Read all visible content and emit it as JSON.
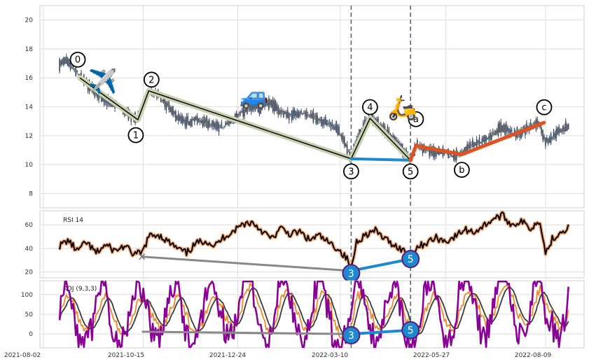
{
  "chart_data": [
    {
      "type": "candlestick",
      "panel": "price",
      "ylim": [
        7,
        21
      ],
      "yticks": [
        8,
        10,
        12,
        14,
        16,
        18,
        20
      ],
      "xlim": [
        "2021-08-02",
        "2022-09-04"
      ],
      "price_color": "#3b4658",
      "price_series": [
        {
          "x": "2021-08-14",
          "y": 16.9
        },
        {
          "x": "2021-08-18",
          "y": 17.2
        },
        {
          "x": "2021-08-22",
          "y": 16.8
        },
        {
          "x": "2021-08-26",
          "y": 16.5
        },
        {
          "x": "2021-08-30",
          "y": 16.0
        },
        {
          "x": "2021-09-05",
          "y": 15.4
        },
        {
          "x": "2021-09-12",
          "y": 14.8
        },
        {
          "x": "2021-09-19",
          "y": 14.3
        },
        {
          "x": "2021-09-26",
          "y": 14.1
        },
        {
          "x": "2021-10-03",
          "y": 13.5
        },
        {
          "x": "2021-10-10",
          "y": 13.1
        },
        {
          "x": "2021-10-15",
          "y": 14.0
        },
        {
          "x": "2021-10-19",
          "y": 15.0
        },
        {
          "x": "2021-10-25",
          "y": 14.9
        },
        {
          "x": "2021-11-01",
          "y": 14.2
        },
        {
          "x": "2021-11-08",
          "y": 13.4
        },
        {
          "x": "2021-11-15",
          "y": 12.9
        },
        {
          "x": "2021-11-22",
          "y": 13.1
        },
        {
          "x": "2021-11-29",
          "y": 13.0
        },
        {
          "x": "2021-12-06",
          "y": 12.7
        },
        {
          "x": "2021-12-13",
          "y": 12.6
        },
        {
          "x": "2021-12-20",
          "y": 13.1
        },
        {
          "x": "2021-12-27",
          "y": 13.6
        },
        {
          "x": "2022-01-03",
          "y": 13.9
        },
        {
          "x": "2022-01-10",
          "y": 13.9
        },
        {
          "x": "2022-01-17",
          "y": 14.3
        },
        {
          "x": "2022-01-24",
          "y": 13.7
        },
        {
          "x": "2022-01-31",
          "y": 13.4
        },
        {
          "x": "2022-02-07",
          "y": 13.6
        },
        {
          "x": "2022-02-14",
          "y": 13.4
        },
        {
          "x": "2022-02-21",
          "y": 13.2
        },
        {
          "x": "2022-02-28",
          "y": 12.9
        },
        {
          "x": "2022-03-07",
          "y": 12.6
        },
        {
          "x": "2022-03-14",
          "y": 11.3
        },
        {
          "x": "2022-03-18",
          "y": 10.5
        },
        {
          "x": "2022-03-22",
          "y": 11.6
        },
        {
          "x": "2022-03-27",
          "y": 12.7
        },
        {
          "x": "2022-04-01",
          "y": 13.3
        },
        {
          "x": "2022-04-07",
          "y": 12.9
        },
        {
          "x": "2022-04-14",
          "y": 12.2
        },
        {
          "x": "2022-04-21",
          "y": 11.6
        },
        {
          "x": "2022-04-28",
          "y": 10.7
        },
        {
          "x": "2022-05-01",
          "y": 10.3
        },
        {
          "x": "2022-05-05",
          "y": 11.3
        },
        {
          "x": "2022-05-12",
          "y": 11.1
        },
        {
          "x": "2022-05-19",
          "y": 10.8
        },
        {
          "x": "2022-05-26",
          "y": 10.9
        },
        {
          "x": "2022-06-02",
          "y": 10.6
        },
        {
          "x": "2022-06-09",
          "y": 10.8
        },
        {
          "x": "2022-06-16",
          "y": 11.4
        },
        {
          "x": "2022-06-23",
          "y": 11.6
        },
        {
          "x": "2022-06-30",
          "y": 12.0
        },
        {
          "x": "2022-07-07",
          "y": 12.6
        },
        {
          "x": "2022-07-14",
          "y": 12.3
        },
        {
          "x": "2022-07-21",
          "y": 12.1
        },
        {
          "x": "2022-07-28",
          "y": 12.6
        },
        {
          "x": "2022-08-04",
          "y": 12.9
        },
        {
          "x": "2022-08-09",
          "y": 11.6
        },
        {
          "x": "2022-08-14",
          "y": 11.9
        },
        {
          "x": "2022-08-20",
          "y": 12.4
        },
        {
          "x": "2022-08-26",
          "y": 12.7
        }
      ],
      "wave_label_color": "#000000",
      "impulse_color": "#c8d4b0",
      "impulse_core_color": "#111111",
      "impulse_wave": [
        {
          "label": "0",
          "x": "2021-08-29",
          "y": 16.0
        },
        {
          "label": "1",
          "x": "2021-10-11",
          "y": 13.1
        },
        {
          "label": "2",
          "x": "2021-10-19",
          "y": 15.1
        },
        {
          "label": "3",
          "x": "2022-03-18",
          "y": 10.4
        },
        {
          "label": "4",
          "x": "2022-04-01",
          "y": 13.2
        },
        {
          "label": "5",
          "x": "2022-05-01",
          "y": 10.3
        }
      ],
      "correction_color": "#e0521f",
      "correction_wave": [
        {
          "label": "a",
          "x": "2022-05-05",
          "y": 11.3
        },
        {
          "label": "b",
          "x": "2022-06-08",
          "y": 10.7
        },
        {
          "label": "c",
          "x": "2022-08-08",
          "y": 12.9
        }
      ],
      "divergence_color": "#1e88d0",
      "divergence_line": {
        "from": {
          "x": "2022-03-18",
          "y": 10.4
        },
        "to": {
          "x": "2022-05-01",
          "y": 10.3
        }
      },
      "vlines": [
        "2022-03-18",
        "2022-05-01"
      ],
      "vline_color": "#56677a",
      "markers": [
        {
          "icon": "airplane-icon",
          "glyph": "✈️",
          "x": "2021-09-15",
          "y": 15.2
        },
        {
          "icon": "car-icon",
          "glyph": "🚙",
          "x": "2022-01-05",
          "y": 14.2
        },
        {
          "icon": "scooter-icon",
          "glyph": "🛵",
          "x": "2022-04-25",
          "y": 13.4
        }
      ]
    },
    {
      "type": "line",
      "panel": "rsi",
      "title": "RSI 14",
      "ylim": [
        15,
        72
      ],
      "yticks": [
        20,
        40,
        60
      ],
      "series_color": "#000000",
      "series_glow": "#f3a877",
      "series": [
        {
          "x": "2021-08-14",
          "y": 42
        },
        {
          "x": "2021-08-20",
          "y": 47
        },
        {
          "x": "2021-08-27",
          "y": 38
        },
        {
          "x": "2021-09-03",
          "y": 45
        },
        {
          "x": "2021-09-10",
          "y": 36
        },
        {
          "x": "2021-09-17",
          "y": 43
        },
        {
          "x": "2021-09-24",
          "y": 38
        },
        {
          "x": "2021-10-01",
          "y": 42
        },
        {
          "x": "2021-10-08",
          "y": 35
        },
        {
          "x": "2021-10-14",
          "y": 36
        },
        {
          "x": "2021-10-19",
          "y": 50
        },
        {
          "x": "2021-10-26",
          "y": 52
        },
        {
          "x": "2021-11-02",
          "y": 46
        },
        {
          "x": "2021-11-09",
          "y": 40
        },
        {
          "x": "2021-11-16",
          "y": 36
        },
        {
          "x": "2021-11-23",
          "y": 44
        },
        {
          "x": "2021-11-30",
          "y": 47
        },
        {
          "x": "2021-12-07",
          "y": 42
        },
        {
          "x": "2021-12-14",
          "y": 50
        },
        {
          "x": "2021-12-21",
          "y": 55
        },
        {
          "x": "2021-12-28",
          "y": 61
        },
        {
          "x": "2022-01-04",
          "y": 62
        },
        {
          "x": "2022-01-11",
          "y": 55
        },
        {
          "x": "2022-01-18",
          "y": 48
        },
        {
          "x": "2022-01-25",
          "y": 57
        },
        {
          "x": "2022-02-01",
          "y": 52
        },
        {
          "x": "2022-02-08",
          "y": 54
        },
        {
          "x": "2022-02-15",
          "y": 47
        },
        {
          "x": "2022-02-22",
          "y": 51
        },
        {
          "x": "2022-03-01",
          "y": 45
        },
        {
          "x": "2022-03-08",
          "y": 40
        },
        {
          "x": "2022-03-15",
          "y": 31
        },
        {
          "x": "2022-03-18",
          "y": 22
        },
        {
          "x": "2022-03-22",
          "y": 46
        },
        {
          "x": "2022-03-29",
          "y": 52
        },
        {
          "x": "2022-04-05",
          "y": 55
        },
        {
          "x": "2022-04-12",
          "y": 48
        },
        {
          "x": "2022-04-19",
          "y": 43
        },
        {
          "x": "2022-04-26",
          "y": 38
        },
        {
          "x": "2022-05-01",
          "y": 35
        },
        {
          "x": "2022-05-06",
          "y": 41
        },
        {
          "x": "2022-05-13",
          "y": 45
        },
        {
          "x": "2022-05-20",
          "y": 49
        },
        {
          "x": "2022-05-27",
          "y": 46
        },
        {
          "x": "2022-06-03",
          "y": 50
        },
        {
          "x": "2022-06-10",
          "y": 56
        },
        {
          "x": "2022-06-17",
          "y": 54
        },
        {
          "x": "2022-06-24",
          "y": 59
        },
        {
          "x": "2022-07-01",
          "y": 65
        },
        {
          "x": "2022-07-08",
          "y": 68
        },
        {
          "x": "2022-07-15",
          "y": 60
        },
        {
          "x": "2022-07-22",
          "y": 63
        },
        {
          "x": "2022-07-29",
          "y": 57
        },
        {
          "x": "2022-08-05",
          "y": 64
        },
        {
          "x": "2022-08-09",
          "y": 36
        },
        {
          "x": "2022-08-14",
          "y": 48
        },
        {
          "x": "2022-08-20",
          "y": 54
        },
        {
          "x": "2022-08-26",
          "y": 58
        }
      ],
      "divergence_line": {
        "color": "#888888",
        "from": {
          "x": "2021-10-14",
          "y": 33
        },
        "to": {
          "x": "2022-03-18",
          "y": 21
        }
      },
      "cross_marker": {
        "x": "2021-10-14",
        "y": 33
      },
      "blue_line": {
        "color": "#1e88d0",
        "from": {
          "x": "2022-03-18",
          "y": 21
        },
        "to": {
          "x": "2022-05-01",
          "y": 31
        }
      },
      "wave_markers": [
        {
          "label": "3",
          "x": "2022-03-18",
          "y": 19
        },
        {
          "label": "5",
          "x": "2022-05-01",
          "y": 31
        }
      ]
    },
    {
      "type": "line",
      "panel": "kdj",
      "title": "KDJ (9,3,3)",
      "ylim": [
        -35,
        135
      ],
      "yticks": [
        0,
        50,
        100
      ],
      "series": [
        {
          "name": "K",
          "color": "#ef8a2b"
        },
        {
          "name": "D",
          "color": "#3a3a3a"
        },
        {
          "name": "J",
          "color": "#8b0096"
        }
      ],
      "divergence_line": {
        "color": "#888888",
        "from": {
          "x": "2021-10-14",
          "y": 6
        },
        "to": {
          "x": "2022-03-18",
          "y": 0
        }
      },
      "blue_line": {
        "color": "#1e88d0",
        "from": {
          "x": "2022-03-18",
          "y": 0
        },
        "to": {
          "x": "2022-05-01",
          "y": 10
        }
      },
      "wave_markers": [
        {
          "label": "3",
          "x": "2022-03-18",
          "y": -3
        },
        {
          "label": "5",
          "x": "2022-05-01",
          "y": 10
        }
      ]
    }
  ],
  "x_tick_labels": [
    "2021-08-02",
    "2021-10-15",
    "2021-12-24",
    "2022-03-10",
    "2022-05-27",
    "2022-08-09"
  ]
}
